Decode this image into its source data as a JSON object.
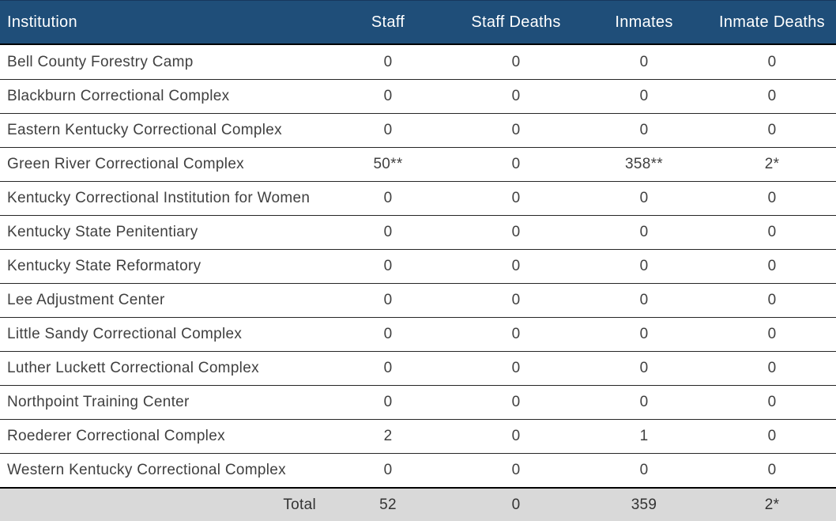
{
  "table": {
    "columns": {
      "institution": "Institution",
      "staff": "Staff",
      "staff_deaths": "Staff Deaths",
      "inmates": "Inmates",
      "inmate_deaths": "Inmate Deaths"
    },
    "rows": [
      {
        "institution": "Bell County Forestry Camp",
        "staff": "0",
        "staff_deaths": "0",
        "inmates": "0",
        "inmate_deaths": "0"
      },
      {
        "institution": "Blackburn Correctional Complex",
        "staff": "0",
        "staff_deaths": "0",
        "inmates": "0",
        "inmate_deaths": "0"
      },
      {
        "institution": "Eastern Kentucky Correctional Complex",
        "staff": "0",
        "staff_deaths": "0",
        "inmates": "0",
        "inmate_deaths": "0"
      },
      {
        "institution": "Green River Correctional Complex",
        "staff": "50**",
        "staff_deaths": "0",
        "inmates": "358**",
        "inmate_deaths": "2*"
      },
      {
        "institution": "Kentucky Correctional Institution for Women",
        "staff": "0",
        "staff_deaths": "0",
        "inmates": "0",
        "inmate_deaths": "0"
      },
      {
        "institution": "Kentucky State Penitentiary",
        "staff": "0",
        "staff_deaths": "0",
        "inmates": "0",
        "inmate_deaths": "0"
      },
      {
        "institution": "Kentucky State Reformatory",
        "staff": "0",
        "staff_deaths": "0",
        "inmates": "0",
        "inmate_deaths": "0"
      },
      {
        "institution": "Lee Adjustment Center",
        "staff": "0",
        "staff_deaths": "0",
        "inmates": "0",
        "inmate_deaths": "0"
      },
      {
        "institution": "Little Sandy Correctional Complex",
        "staff": "0",
        "staff_deaths": "0",
        "inmates": "0",
        "inmate_deaths": "0"
      },
      {
        "institution": "Luther Luckett Correctional Complex",
        "staff": "0",
        "staff_deaths": "0",
        "inmates": "0",
        "inmate_deaths": "0"
      },
      {
        "institution": "Northpoint Training Center",
        "staff": "0",
        "staff_deaths": "0",
        "inmates": "0",
        "inmate_deaths": "0"
      },
      {
        "institution": "Roederer Correctional Complex",
        "staff": "2",
        "staff_deaths": "0",
        "inmates": "1",
        "inmate_deaths": "0"
      },
      {
        "institution": "Western Kentucky Correctional Complex",
        "staff": "0",
        "staff_deaths": "0",
        "inmates": "0",
        "inmate_deaths": "0"
      }
    ],
    "total": {
      "label": "Total",
      "staff": "52",
      "staff_deaths": "0",
      "inmates": "359",
      "inmate_deaths": "2*"
    }
  },
  "colors": {
    "header_bg": "#1F4E79",
    "header_text": "#FFFFFF",
    "header_top_line": "#17375E",
    "body_text": "#404040",
    "border_thin": "#262626",
    "border_strong": "#000000",
    "total_bg": "#D9D9D9",
    "total_text": "#333333"
  }
}
